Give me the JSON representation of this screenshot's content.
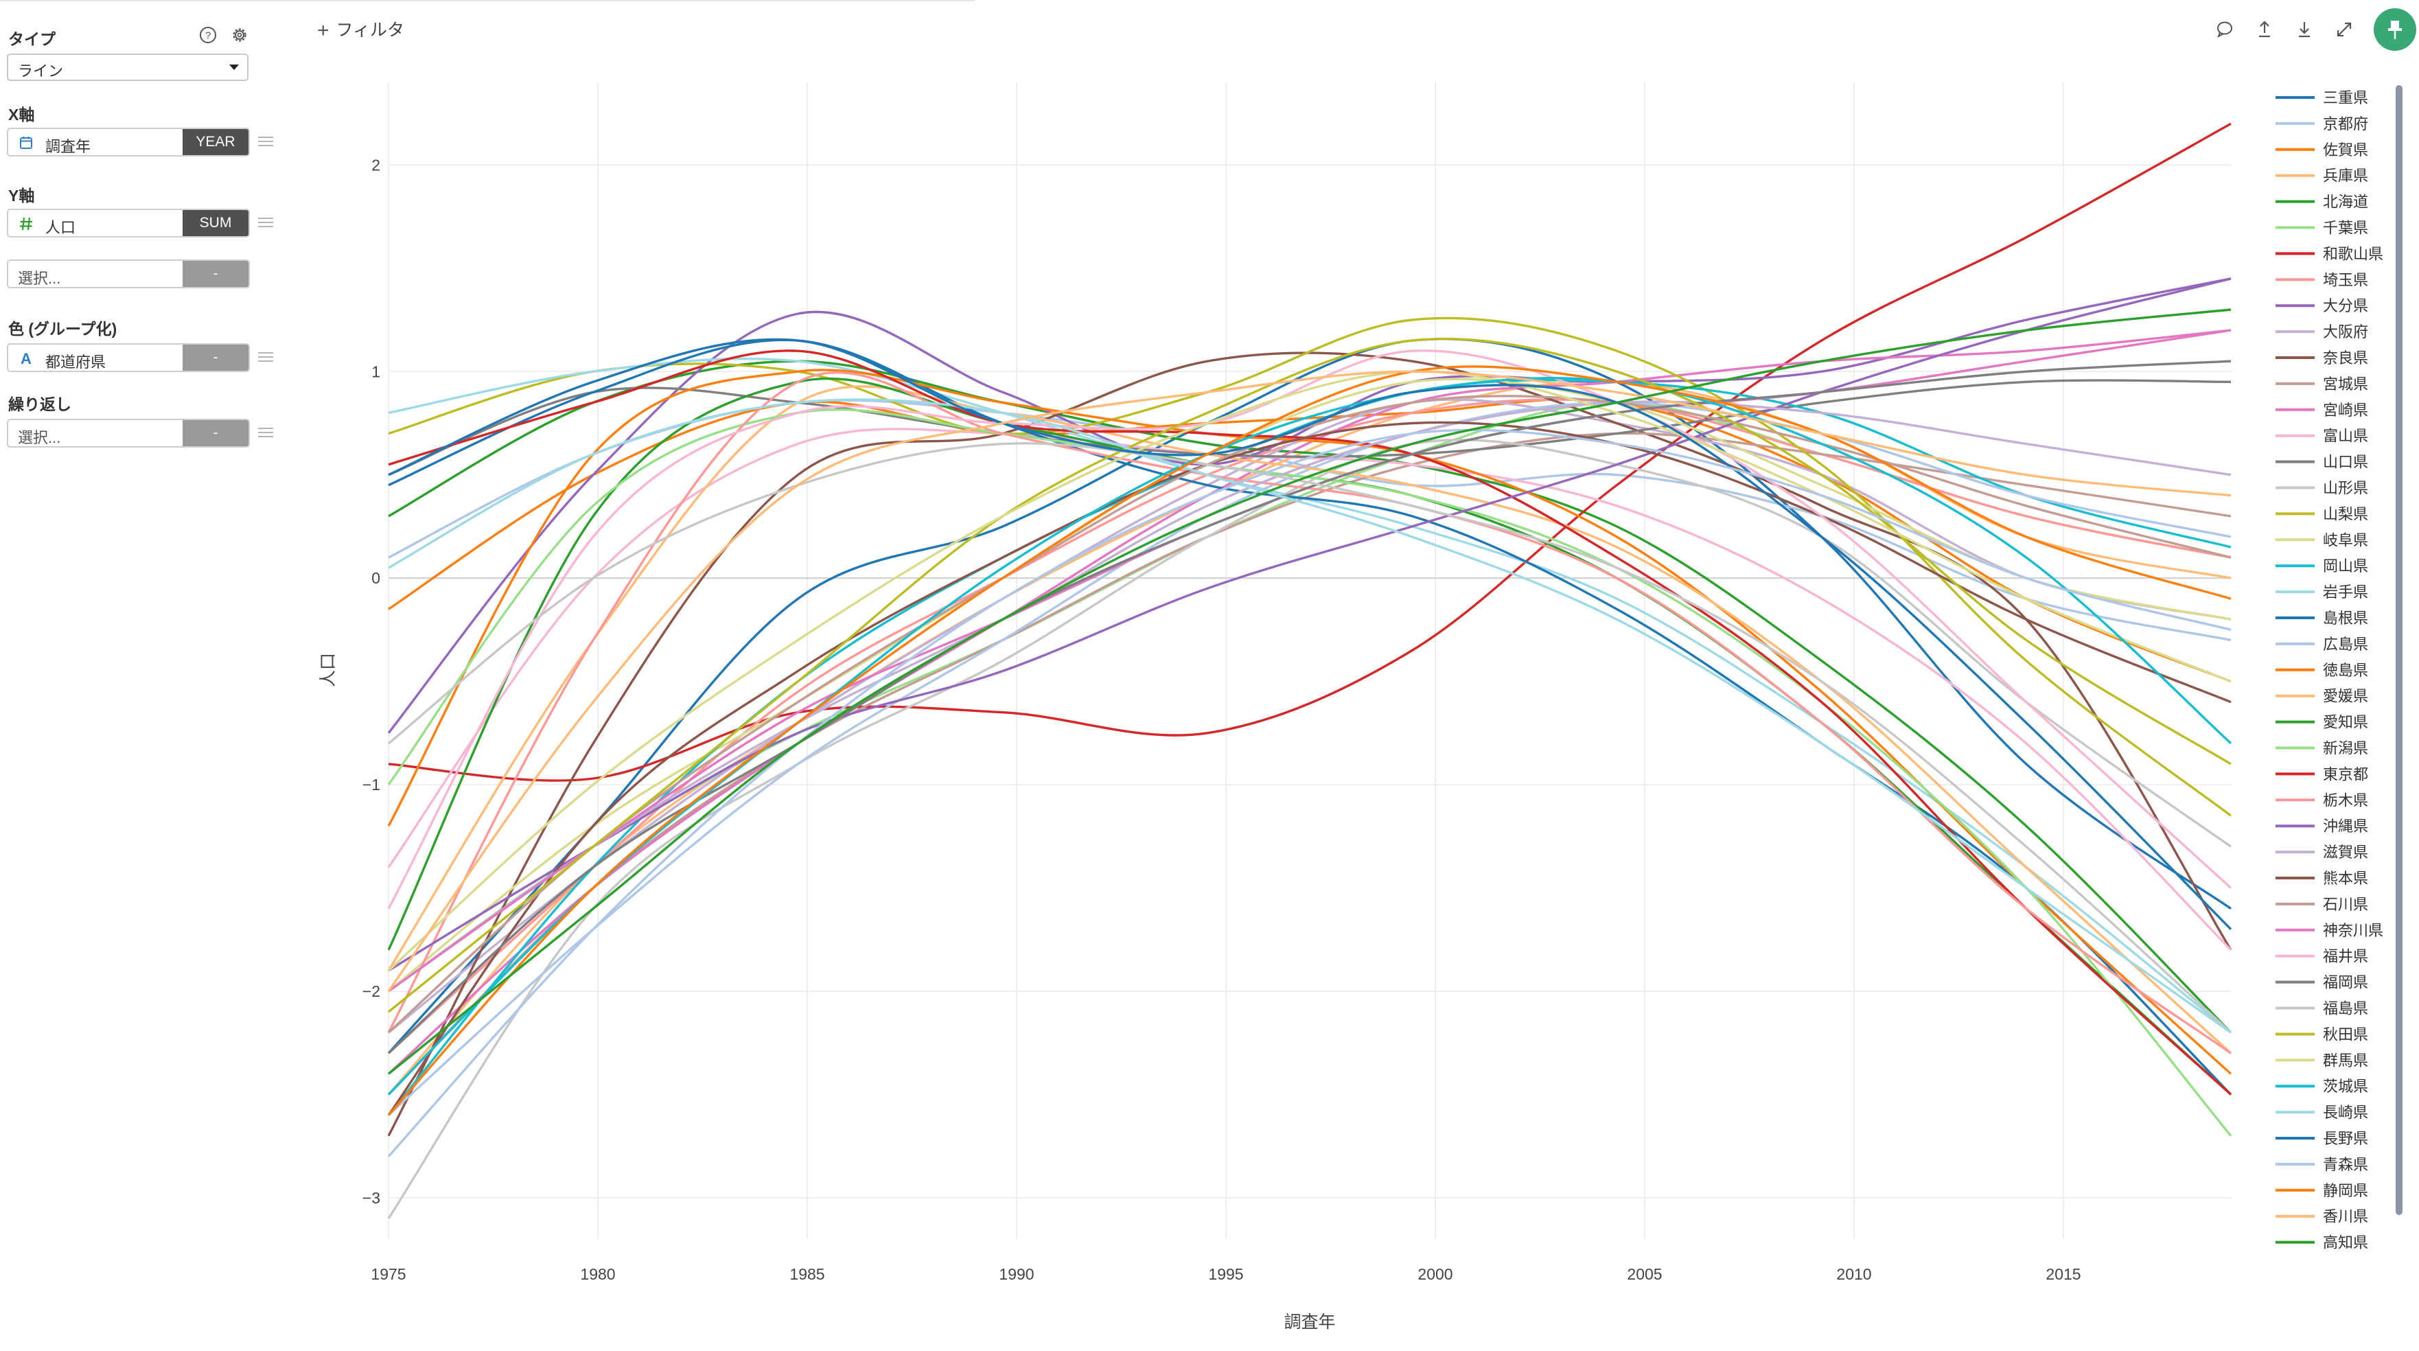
{
  "panel": {
    "type_label": "タイプ",
    "type_value": "ライン",
    "x_label": "X軸",
    "x_field": {
      "icon": "calendar-icon",
      "name": "調査年",
      "agg": "YEAR"
    },
    "y_label": "Y軸",
    "y_field": {
      "icon": "hash-icon",
      "name": "人口",
      "agg": "SUM"
    },
    "y_extra": {
      "placeholder": "選択...",
      "agg": "-"
    },
    "color_label": "色 (グループ化)",
    "color_field": {
      "icon": "text-type-icon",
      "name": "都道府県",
      "agg": "-"
    },
    "repeat_label": "繰り返し",
    "repeat_field": {
      "placeholder": "選択...",
      "agg": "-"
    }
  },
  "toolbar": {
    "filter_label": "フィルタ",
    "icons": [
      "comment-icon",
      "upload-icon",
      "download-icon",
      "expand-icon",
      "pin-icon"
    ]
  },
  "colors": {
    "accent_green": "#3aa876",
    "agg_dark": "#505050",
    "agg_empty": "#9a9a9a"
  },
  "chart_data": {
    "type": "line",
    "title": "",
    "xlabel": "調査年",
    "ylabel": "人口",
    "xlim": [
      1975,
      2019
    ],
    "ylim": [
      -3.2,
      2.4
    ],
    "xticks": [
      1975,
      1980,
      1985,
      1990,
      1995,
      2000,
      2005,
      2010,
      2015
    ],
    "yticks": [
      -3,
      -2,
      -1,
      0,
      1,
      2
    ],
    "grid": true,
    "legend_position": "right",
    "series": [
      {
        "name": "三重県",
        "color": "#1f77b4",
        "values": [
          -2.3,
          -1.2,
          -0.1,
          0.25,
          0.75,
          1.15,
          0.95,
          0.2,
          -0.9,
          -1.6
        ]
      },
      {
        "name": "京都府",
        "color": "#aec7e8",
        "values": [
          0.1,
          0.6,
          0.85,
          0.8,
          0.65,
          0.45,
          0.5,
          0.3,
          -0.1,
          -0.3
        ]
      },
      {
        "name": "佐賀県",
        "color": "#ff7f0e",
        "values": [
          -0.15,
          0.5,
          0.85,
          0.7,
          0.75,
          0.8,
          0.85,
          0.5,
          -0.1,
          -0.5
        ]
      },
      {
        "name": "兵庫県",
        "color": "#ffbb78",
        "values": [
          -2.5,
          -1.4,
          -0.7,
          -0.1,
          0.4,
          0.8,
          0.95,
          0.7,
          0.2,
          0.0
        ]
      },
      {
        "name": "北海道",
        "color": "#2ca02c",
        "values": [
          0.3,
          0.85,
          1.05,
          0.85,
          0.65,
          0.55,
          0.25,
          -0.4,
          -1.2,
          -2.2
        ]
      },
      {
        "name": "千葉県",
        "color": "#98df8a",
        "values": [
          -2.0,
          -1.3,
          -0.75,
          -0.3,
          0.2,
          0.6,
          0.85,
          0.6,
          0.3,
          0.1
        ]
      },
      {
        "name": "和歌山県",
        "color": "#d62728",
        "values": [
          -0.9,
          -0.97,
          -0.65,
          -0.65,
          -0.75,
          -0.35,
          0.45,
          1.15,
          1.65,
          2.2
        ]
      },
      {
        "name": "埼玉県",
        "color": "#ff9896",
        "values": [
          -2.3,
          -1.4,
          -0.55,
          0.0,
          0.5,
          0.8,
          0.85,
          0.6,
          0.3,
          0.1
        ]
      },
      {
        "name": "大分県",
        "color": "#9467bd",
        "values": [
          -0.75,
          0.5,
          1.28,
          0.9,
          0.55,
          0.95,
          0.95,
          1.0,
          1.25,
          1.45
        ]
      },
      {
        "name": "大阪府",
        "color": "#c5b0d5",
        "values": [
          -2.2,
          -1.4,
          -0.7,
          -0.1,
          0.45,
          0.85,
          0.75,
          0.5,
          0.0,
          -0.2
        ]
      },
      {
        "name": "奈良県",
        "color": "#8c564b",
        "values": [
          -2.7,
          -0.8,
          0.5,
          0.7,
          1.05,
          1.05,
          0.75,
          0.35,
          -0.2,
          -1.8
        ]
      },
      {
        "name": "宮城県",
        "color": "#c49c94",
        "values": [
          -2.5,
          -1.5,
          -0.8,
          -0.3,
          0.2,
          0.55,
          0.7,
          0.6,
          0.45,
          0.3
        ]
      },
      {
        "name": "宮崎県",
        "color": "#e377c2",
        "values": [
          -2.4,
          -1.5,
          -0.8,
          -0.2,
          0.4,
          0.85,
          0.95,
          1.05,
          1.1,
          1.2
        ]
      },
      {
        "name": "富山県",
        "color": "#f7b6d2",
        "values": [
          -1.4,
          0.0,
          0.65,
          0.7,
          0.6,
          0.55,
          0.35,
          -0.1,
          -0.8,
          -1.8
        ]
      },
      {
        "name": "山口県",
        "color": "#7f7f7f",
        "values": [
          0.5,
          0.9,
          0.85,
          0.7,
          0.6,
          0.6,
          0.7,
          0.85,
          0.95,
          0.95
        ]
      },
      {
        "name": "山形県",
        "color": "#c7c7c7",
        "values": [
          -3.1,
          -1.6,
          -0.9,
          -0.4,
          0.2,
          0.65,
          0.55,
          0.2,
          -0.6,
          -1.3
        ]
      },
      {
        "name": "山梨県",
        "color": "#bcbd22",
        "values": [
          0.7,
          1.0,
          1.0,
          0.7,
          0.9,
          1.25,
          1.1,
          0.55,
          -0.4,
          -1.15
        ]
      },
      {
        "name": "岐阜県",
        "color": "#dbdb8d",
        "values": [
          -2.0,
          -1.2,
          -0.6,
          0.0,
          0.6,
          0.95,
          0.85,
          0.45,
          0.0,
          -0.2
        ]
      },
      {
        "name": "岡山県",
        "color": "#17becf",
        "values": [
          -2.6,
          -1.4,
          -0.5,
          0.1,
          0.55,
          0.9,
          0.95,
          0.8,
          0.4,
          0.15
        ]
      },
      {
        "name": "岩手県",
        "color": "#9edae5",
        "values": [
          0.8,
          1.0,
          1.05,
          0.8,
          0.5,
          0.25,
          -0.1,
          -0.7,
          -1.4,
          -2.2
        ]
      },
      {
        "name": "島根県",
        "color": "#1f77b4",
        "values": [
          0.45,
          0.9,
          1.15,
          0.75,
          0.45,
          0.3,
          -0.15,
          -0.8,
          -1.5,
          -2.5
        ]
      },
      {
        "name": "広島県",
        "color": "#aec7e8",
        "values": [
          -2.6,
          -1.7,
          -0.9,
          -0.3,
          0.3,
          0.7,
          0.85,
          0.7,
          0.4,
          0.2
        ]
      },
      {
        "name": "徳島県",
        "color": "#ff7f0e",
        "values": [
          -1.2,
          0.6,
          1.0,
          0.85,
          0.7,
          0.6,
          0.2,
          -0.55,
          -1.5,
          -2.4
        ]
      },
      {
        "name": "愛媛県",
        "color": "#ffbb78",
        "values": [
          -1.9,
          -0.3,
          0.85,
          0.8,
          0.6,
          0.45,
          0.15,
          -0.5,
          -1.4,
          -2.3
        ]
      },
      {
        "name": "愛知県",
        "color": "#2ca02c",
        "values": [
          -1.8,
          0.3,
          0.95,
          0.75,
          0.55,
          0.4,
          0.0,
          -0.7,
          -1.6,
          -2.5
        ]
      },
      {
        "name": "新潟県",
        "color": "#98df8a",
        "values": [
          -1.0,
          0.35,
          0.8,
          0.7,
          0.55,
          0.4,
          0.05,
          -0.6,
          -1.5,
          -2.7
        ]
      },
      {
        "name": "東京都",
        "color": "#d62728",
        "values": [
          0.55,
          0.85,
          1.1,
          0.75,
          0.7,
          0.6,
          0.1,
          -0.6,
          -1.6,
          -2.5
        ]
      },
      {
        "name": "栃木県",
        "color": "#ff9896",
        "values": [
          -2.2,
          -0.3,
          0.95,
          0.7,
          0.5,
          0.35,
          0.0,
          -0.7,
          -1.6,
          -2.3
        ]
      },
      {
        "name": "沖縄県",
        "color": "#9467bd",
        "values": [
          -1.9,
          -1.3,
          -0.75,
          -0.45,
          -0.05,
          0.25,
          0.55,
          0.9,
          1.2,
          1.45
        ]
      },
      {
        "name": "滋賀県",
        "color": "#c5b0d5",
        "values": [
          -2.0,
          -1.3,
          -0.7,
          -0.2,
          0.35,
          0.7,
          0.85,
          0.8,
          0.65,
          0.5
        ]
      },
      {
        "name": "熊本県",
        "color": "#8c564b",
        "values": [
          -2.6,
          -1.2,
          -0.45,
          0.1,
          0.55,
          0.75,
          0.65,
          0.3,
          -0.2,
          -0.6
        ]
      },
      {
        "name": "石川県",
        "color": "#c49c94",
        "values": [
          -2.2,
          -1.3,
          -0.6,
          0.0,
          0.55,
          0.85,
          0.85,
          0.65,
          0.35,
          0.1
        ]
      },
      {
        "name": "神奈川県",
        "color": "#e377c2",
        "values": [
          -2.0,
          -1.3,
          -0.65,
          -0.2,
          0.25,
          0.6,
          0.8,
          0.9,
          1.05,
          1.2
        ]
      },
      {
        "name": "福井県",
        "color": "#f7b6d2",
        "values": [
          -1.6,
          0.2,
          0.8,
          0.75,
          0.75,
          1.1,
          0.85,
          0.3,
          -0.6,
          -1.5
        ]
      },
      {
        "name": "福岡県",
        "color": "#7f7f7f",
        "values": [
          -2.3,
          -1.4,
          -0.8,
          -0.2,
          0.25,
          0.6,
          0.8,
          0.9,
          1.0,
          1.05
        ]
      },
      {
        "name": "福島県",
        "color": "#c7c7c7",
        "values": [
          -0.8,
          0.0,
          0.45,
          0.65,
          0.55,
          0.35,
          0.05,
          -0.5,
          -1.3,
          -2.2
        ]
      },
      {
        "name": "秋田県",
        "color": "#bcbd22",
        "values": [
          -2.1,
          -1.3,
          -0.5,
          0.3,
          0.8,
          1.15,
          1.0,
          0.5,
          -0.3,
          -0.9
        ]
      },
      {
        "name": "群馬県",
        "color": "#dbdb8d",
        "values": [
          -1.9,
          -1.0,
          -0.3,
          0.3,
          0.75,
          1.0,
          0.8,
          0.4,
          -0.1,
          -0.5
        ]
      },
      {
        "name": "茨城県",
        "color": "#17becf",
        "values": [
          -2.5,
          -1.5,
          -0.7,
          0.05,
          0.6,
          0.9,
          0.95,
          0.65,
          0.1,
          -0.8
        ]
      },
      {
        "name": "長崎県",
        "color": "#9edae5",
        "values": [
          0.05,
          0.6,
          0.85,
          0.8,
          0.5,
          0.2,
          -0.2,
          -0.8,
          -1.5,
          -2.2
        ]
      },
      {
        "name": "長野県",
        "color": "#1f77b4",
        "values": [
          0.5,
          0.95,
          1.15,
          0.75,
          0.6,
          0.9,
          0.85,
          0.2,
          -0.7,
          -1.7
        ]
      },
      {
        "name": "青森県",
        "color": "#aec7e8",
        "values": [
          -2.8,
          -1.7,
          -0.8,
          -0.1,
          0.4,
          0.7,
          0.65,
          0.4,
          0.0,
          -0.25
        ]
      },
      {
        "name": "静岡県",
        "color": "#ff7f0e",
        "values": [
          -2.6,
          -1.5,
          -0.7,
          0.0,
          0.6,
          1.0,
          0.95,
          0.7,
          0.2,
          -0.1
        ]
      },
      {
        "name": "香川県",
        "color": "#ffbb78",
        "values": [
          -2.0,
          -0.6,
          0.45,
          0.75,
          0.9,
          1.0,
          0.9,
          0.7,
          0.5,
          0.4
        ]
      },
      {
        "name": "高知県",
        "color": "#2ca02c",
        "values": [
          -2.4,
          -1.6,
          -0.8,
          -0.2,
          0.3,
          0.65,
          0.85,
          1.05,
          1.2,
          1.3
        ]
      }
    ]
  }
}
